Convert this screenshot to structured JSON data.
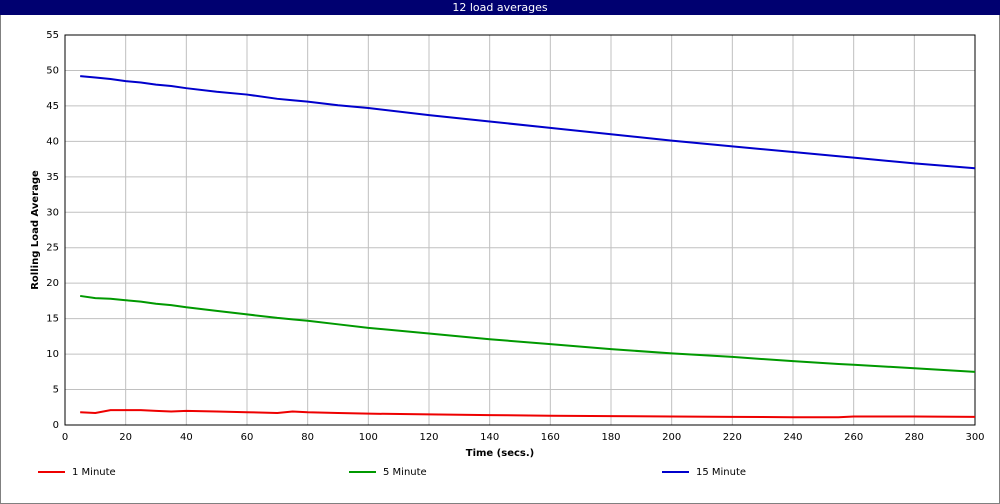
{
  "chart_data": {
    "type": "line",
    "title": "12 load averages",
    "x_label": "Time (secs.)",
    "y_label": "Rolling Load Average",
    "x": [
      5,
      10,
      15,
      20,
      25,
      30,
      35,
      40,
      50,
      60,
      70,
      75,
      80,
      90,
      100,
      120,
      140,
      160,
      180,
      200,
      220,
      240,
      255,
      260,
      280,
      300
    ],
    "series": [
      {
        "name": "1 Minute",
        "color": "#ee0000",
        "values": [
          1.8,
          1.7,
          2.1,
          2.1,
          2.1,
          2.0,
          1.9,
          2.0,
          1.9,
          1.8,
          1.7,
          1.9,
          1.8,
          1.7,
          1.6,
          1.5,
          1.4,
          1.3,
          1.25,
          1.2,
          1.15,
          1.1,
          1.1,
          1.2,
          1.2,
          1.15
        ]
      },
      {
        "name": "5 Minute",
        "color": "#009900",
        "values": [
          18.2,
          17.9,
          17.8,
          17.6,
          17.4,
          17.1,
          16.9,
          16.6,
          16.1,
          15.6,
          15.1,
          14.9,
          14.7,
          14.2,
          13.7,
          12.9,
          12.1,
          11.4,
          10.7,
          10.1,
          9.6,
          9.0,
          8.6,
          8.5,
          8.0,
          7.5
        ]
      },
      {
        "name": "15 Minute",
        "color": "#0000cc",
        "values": [
          49.2,
          49.0,
          48.8,
          48.5,
          48.3,
          48.0,
          47.8,
          47.5,
          47.0,
          46.6,
          46.0,
          45.8,
          45.6,
          45.1,
          44.7,
          43.7,
          42.8,
          41.9,
          41.0,
          40.1,
          39.3,
          38.5,
          37.9,
          37.7,
          36.9,
          36.2
        ]
      }
    ],
    "xlim": [
      0,
      300
    ],
    "xticks": [
      0,
      20,
      40,
      60,
      80,
      100,
      120,
      140,
      160,
      180,
      200,
      220,
      240,
      260,
      280,
      300
    ],
    "ylim": [
      0,
      55
    ],
    "yticks": [
      0,
      5,
      10,
      15,
      20,
      25,
      30,
      35,
      40,
      45,
      50,
      55
    ],
    "grid": true,
    "legend": "bottom"
  }
}
